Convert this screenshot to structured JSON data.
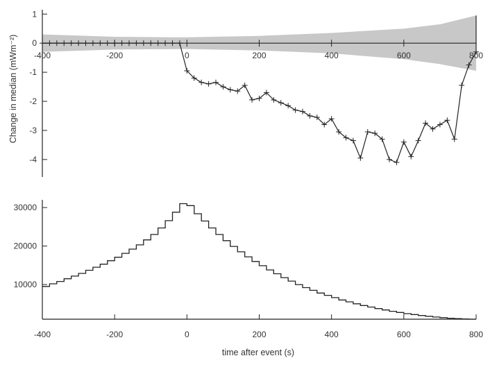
{
  "chart_data": [
    {
      "type": "line",
      "ylabel": "Change in median (mWm⁻²)",
      "xlim": [
        -400,
        800
      ],
      "ylim": [
        -4.6,
        1.15
      ],
      "xticks": [
        -400,
        -200,
        0,
        200,
        400,
        600,
        800
      ],
      "xtick_labels": [
        "-400",
        "-200",
        "0",
        "200",
        "400",
        "600",
        "800"
      ],
      "yticks": [
        1,
        0,
        -1,
        -2,
        -3,
        -4
      ],
      "ytick_labels": [
        "1",
        "0",
        "-1",
        "-2",
        "-3",
        "-4"
      ],
      "band": {
        "x": [
          -400,
          -200,
          0,
          200,
          400,
          600,
          700,
          800
        ],
        "upper": [
          0.3,
          0.22,
          0.2,
          0.25,
          0.35,
          0.5,
          0.65,
          0.95
        ],
        "lower": [
          -0.3,
          -0.22,
          -0.2,
          -0.25,
          -0.35,
          -0.55,
          -0.72,
          -0.95
        ]
      },
      "series": [
        {
          "x": [
            -400,
            -380,
            -360,
            -340,
            -320,
            -300,
            -280,
            -260,
            -240,
            -220,
            -200,
            -180,
            -160,
            -140,
            -120,
            -100,
            -80,
            -60,
            -40,
            -20,
            0,
            20,
            40,
            60,
            80,
            100,
            120,
            140,
            160,
            180,
            200,
            220,
            240,
            260,
            280,
            300,
            320,
            340,
            360,
            380,
            400,
            420,
            440,
            460,
            480,
            500,
            520,
            540,
            560,
            580,
            600,
            620,
            640,
            660,
            680,
            700,
            720,
            740,
            760,
            780,
            800
          ],
          "y": [
            0,
            0,
            0,
            0,
            0,
            0,
            0,
            0,
            0,
            0,
            0,
            0,
            0,
            0,
            0,
            0,
            0,
            0,
            0,
            0,
            -0.95,
            -1.2,
            -1.35,
            -1.4,
            -1.35,
            -1.5,
            -1.6,
            -1.65,
            -1.45,
            -1.95,
            -1.9,
            -1.7,
            -1.95,
            -2.05,
            -2.15,
            -2.3,
            -2.35,
            -2.5,
            -2.55,
            -2.8,
            -2.6,
            -3.05,
            -3.25,
            -3.35,
            -3.95,
            -3.05,
            -3.1,
            -3.3,
            -4.0,
            -4.1,
            -3.4,
            -3.9,
            -3.35,
            -2.75,
            -2.95,
            -2.8,
            -2.65,
            -3.3,
            -1.45,
            -0.75,
            -0.3
          ]
        }
      ],
      "extra_segment": {
        "x": [
          800,
          800
        ],
        "y": [
          -0.3,
          0.95
        ]
      }
    },
    {
      "type": "step",
      "xlabel": "time after event (s)",
      "xlim": [
        -400,
        800
      ],
      "ylim": [
        1000,
        32000
      ],
      "xticks": [
        -400,
        -200,
        0,
        200,
        400,
        600,
        800
      ],
      "xtick_labels": [
        "-400",
        "-200",
        "0",
        "200",
        "400",
        "600",
        "800"
      ],
      "yticks": [
        10000,
        20000,
        30000
      ],
      "ytick_labels": [
        "10000",
        "20000",
        "30000"
      ],
      "bin_width": 20,
      "bin_starts": [
        -400,
        -380,
        -360,
        -340,
        -320,
        -300,
        -280,
        -260,
        -240,
        -220,
        -200,
        -180,
        -160,
        -140,
        -120,
        -100,
        -80,
        -60,
        -40,
        -20,
        0,
        20,
        40,
        60,
        80,
        100,
        120,
        140,
        160,
        180,
        200,
        220,
        240,
        260,
        280,
        300,
        320,
        340,
        360,
        380,
        400,
        420,
        440,
        460,
        480,
        500,
        520,
        540,
        560,
        580,
        600,
        620,
        640,
        660,
        680,
        700,
        720,
        740,
        760,
        780
      ],
      "values": [
        9500,
        10200,
        10800,
        11500,
        12200,
        12900,
        13700,
        14500,
        15300,
        16200,
        17100,
        18100,
        19200,
        20300,
        21600,
        23000,
        24700,
        26600,
        28800,
        31000,
        30500,
        28400,
        26500,
        24700,
        23000,
        21400,
        19900,
        18500,
        17200,
        16000,
        14900,
        13800,
        12800,
        11800,
        10900,
        10000,
        9200,
        8500,
        7800,
        7200,
        6600,
        6000,
        5500,
        5000,
        4550,
        4150,
        3750,
        3400,
        3050,
        2750,
        2450,
        2200,
        1950,
        1750,
        1550,
        1400,
        1250,
        1150,
        1050,
        1000
      ]
    }
  ]
}
